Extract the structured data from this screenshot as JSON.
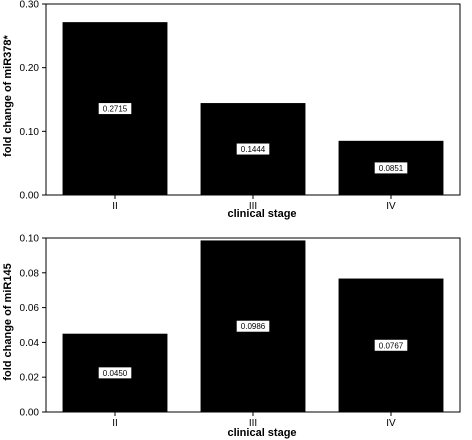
{
  "chart_data": [
    {
      "type": "bar",
      "categories": [
        "II",
        "III",
        "IV"
      ],
      "values": [
        0.2715,
        0.1444,
        0.0851
      ],
      "value_labels": [
        "0.2715",
        "0.1444",
        "0.0851"
      ],
      "xlabel": "clinical stage",
      "ylabel": "fold change of miR378*",
      "ylim": [
        0,
        0.3
      ],
      "yticks": [
        0.0,
        0.1,
        0.2,
        0.3
      ],
      "ytick_labels": [
        "0.00",
        "0.10",
        "0.20",
        "0.30"
      ],
      "bar_color": "#000000",
      "grid": false
    },
    {
      "type": "bar",
      "categories": [
        "II",
        "III",
        "IV"
      ],
      "values": [
        0.045,
        0.0986,
        0.0767
      ],
      "value_labels": [
        "0.0450",
        "0.0986",
        "0.0767"
      ],
      "xlabel": "clinical stage",
      "ylabel": "fold change of miR145",
      "ylim": [
        0,
        0.1
      ],
      "yticks": [
        0.0,
        0.02,
        0.04,
        0.06,
        0.08,
        0.1
      ],
      "ytick_labels": [
        "0.00",
        "0.02",
        "0.04",
        "0.06",
        "0.08",
        "0.10"
      ],
      "bar_color": "#000000",
      "grid": false
    }
  ]
}
